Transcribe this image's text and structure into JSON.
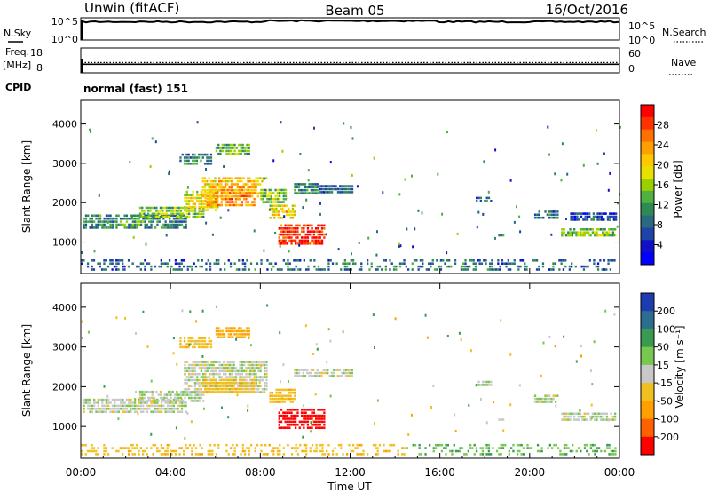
{
  "header": {
    "station": "Unwin (fitACF)",
    "beam": "Beam 05",
    "date": "16/Oct/2016",
    "cpid_label": "CPID",
    "cpid_value": "normal (fast) 151"
  },
  "left_labels": {
    "nsky": "N.Sky",
    "freq_line1": "Freq.",
    "freq_line2": "[MHz]"
  },
  "right_labels": {
    "nsearch": "N.Search",
    "nave": "Nave"
  },
  "chart_data": [
    {
      "type": "line",
      "name": "noise",
      "y_ticks_left": [
        "10^5",
        "10^0"
      ],
      "y_ticks_right": [
        "10^5",
        "10^0"
      ],
      "note": "N.Sky trace near top of panel across entire day"
    },
    {
      "type": "line",
      "name": "frequency",
      "y_ticks_left": [
        "18",
        "8"
      ],
      "y_ticks_right": [
        "60",
        "0"
      ],
      "freq_level": 11.2,
      "nave_level": 14
    },
    {
      "type": "heatmap",
      "name": "power",
      "ylabel": "Slant Range [km]",
      "yticks": [
        1000,
        2000,
        3000,
        4000
      ],
      "ylim": [
        200,
        4600
      ],
      "xlim_hours": [
        0,
        24
      ],
      "colorbar": {
        "label": "Power [dB]",
        "ticks": [
          "28",
          "24",
          "20",
          "16",
          "12",
          "8",
          "4"
        ],
        "colors": [
          "#ff0000",
          "#ff3300",
          "#ff7000",
          "#ffa000",
          "#ffc800",
          "#e8e000",
          "#9ad000",
          "#50b040",
          "#2e8a55",
          "#2a6a80",
          "#1e44a8",
          "#1010c8",
          "#0000ff"
        ]
      },
      "regions": [
        {
          "t0": 0.1,
          "t1": 4.8,
          "r0": 1250,
          "r1": 1700,
          "v": 10
        },
        {
          "t0": 2.6,
          "t1": 5.6,
          "r0": 1550,
          "r1": 1900,
          "v": 14
        },
        {
          "t0": 4.6,
          "t1": 6.2,
          "r0": 1700,
          "r1": 2300,
          "v": 18
        },
        {
          "t0": 5.4,
          "t1": 8.4,
          "r0": 2050,
          "r1": 2650,
          "v": 20
        },
        {
          "t0": 5.6,
          "t1": 7.8,
          "r0": 1850,
          "r1": 2350,
          "v": 23
        },
        {
          "t0": 4.4,
          "t1": 5.9,
          "r0": 2900,
          "r1": 3250,
          "v": 9
        },
        {
          "t0": 6.0,
          "t1": 7.6,
          "r0": 3150,
          "r1": 3500,
          "v": 13
        },
        {
          "t0": 8.0,
          "t1": 9.2,
          "r0": 1950,
          "r1": 2350,
          "v": 14
        },
        {
          "t0": 8.4,
          "t1": 9.6,
          "r0": 1500,
          "r1": 1950,
          "v": 19
        },
        {
          "t0": 8.8,
          "t1": 10.9,
          "r0": 900,
          "r1": 1450,
          "v": 28
        },
        {
          "t0": 9.5,
          "t1": 10.6,
          "r0": 2150,
          "r1": 2500,
          "v": 10
        },
        {
          "t0": 10.6,
          "t1": 12.2,
          "r0": 2200,
          "r1": 2450,
          "v": 8
        },
        {
          "t0": 17.6,
          "t1": 18.4,
          "r0": 1950,
          "r1": 2150,
          "v": 7
        },
        {
          "t0": 18.6,
          "t1": 18.9,
          "r0": 1050,
          "r1": 1200,
          "v": 12
        },
        {
          "t0": 20.2,
          "t1": 21.3,
          "r0": 1550,
          "r1": 1800,
          "v": 8
        },
        {
          "t0": 21.4,
          "t1": 23.9,
          "r0": 1050,
          "r1": 1350,
          "v": 14
        },
        {
          "t0": 21.8,
          "t1": 23.9,
          "r0": 1500,
          "r1": 1750,
          "v": 6
        },
        {
          "t0": 0.0,
          "t1": 24.0,
          "r0": 220,
          "r1": 560,
          "v": 8
        }
      ]
    },
    {
      "type": "heatmap",
      "name": "velocity",
      "ylabel": "Slant Range [km]",
      "yticks": [
        1000,
        2000,
        3000,
        4000
      ],
      "ylim": [
        200,
        4600
      ],
      "xlim_hours": [
        0,
        24
      ],
      "xticks": [
        "00:00",
        "04:00",
        "08:00",
        "12:00",
        "16:00",
        "20:00",
        "00:00"
      ],
      "xlabel": "Time UT",
      "colorbar": {
        "label": "Velocity [m s⁻¹]",
        "ticks": [
          "200",
          "100",
          "50",
          "15",
          "-15",
          "-50",
          "-100",
          "-200"
        ],
        "colors": [
          "#1c3cb0",
          "#2c6e90",
          "#3a9a50",
          "#78c850",
          "#c8c8c8",
          "#f0c020",
          "#ffa000",
          "#ff6000",
          "#ff0000"
        ]
      },
      "regions": [
        {
          "t0": 0.1,
          "t1": 4.8,
          "r0": 1250,
          "r1": 1700,
          "v": 0
        },
        {
          "t0": 2.6,
          "t1": 5.6,
          "r0": 1550,
          "r1": 1900,
          "v": 0
        },
        {
          "t0": 4.6,
          "t1": 8.4,
          "r0": 1800,
          "r1": 2650,
          "v": 0
        },
        {
          "t0": 5.4,
          "t1": 7.8,
          "r0": 1800,
          "r1": 2200,
          "v": -40
        },
        {
          "t0": 4.4,
          "t1": 5.9,
          "r0": 2900,
          "r1": 3250,
          "v": -40
        },
        {
          "t0": 6.0,
          "t1": 7.6,
          "r0": 3150,
          "r1": 3500,
          "v": -60
        },
        {
          "t0": 8.4,
          "t1": 9.6,
          "r0": 1500,
          "r1": 1950,
          "v": -40
        },
        {
          "t0": 8.8,
          "t1": 10.9,
          "r0": 900,
          "r1": 1450,
          "v": -210
        },
        {
          "t0": 9.5,
          "t1": 12.2,
          "r0": 2150,
          "r1": 2450,
          "v": 0
        },
        {
          "t0": 17.6,
          "t1": 18.4,
          "r0": 1950,
          "r1": 2150,
          "v": 0
        },
        {
          "t0": 18.6,
          "t1": 18.9,
          "r0": 1050,
          "r1": 1200,
          "v": 0
        },
        {
          "t0": 20.2,
          "t1": 21.3,
          "r0": 1550,
          "r1": 1800,
          "v": 0
        },
        {
          "t0": 21.4,
          "t1": 23.9,
          "r0": 1050,
          "r1": 1350,
          "v": 0
        },
        {
          "t0": 14.5,
          "t1": 23.9,
          "r0": 220,
          "r1": 560,
          "v": 30
        },
        {
          "t0": 0.0,
          "t1": 14.5,
          "r0": 220,
          "r1": 560,
          "v": -40
        }
      ]
    }
  ]
}
